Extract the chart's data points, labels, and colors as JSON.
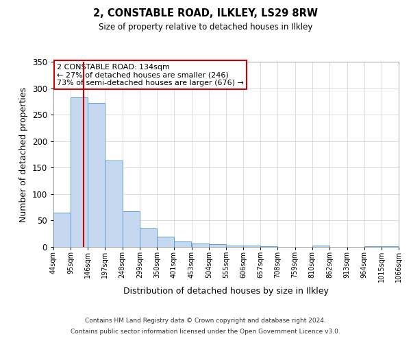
{
  "title": "2, CONSTABLE ROAD, ILKLEY, LS29 8RW",
  "subtitle": "Size of property relative to detached houses in Ilkley",
  "xlabel": "Distribution of detached houses by size in Ilkley",
  "ylabel": "Number of detached properties",
  "bar_left_edges": [
    44,
    95,
    146,
    197,
    248,
    299,
    350,
    401,
    453,
    504,
    555,
    606,
    657,
    708,
    759,
    810,
    862,
    913,
    964,
    1015
  ],
  "bar_heights": [
    65,
    282,
    272,
    163,
    67,
    35,
    20,
    10,
    7,
    5,
    2,
    2,
    1,
    0,
    0,
    2,
    0,
    0,
    1,
    1
  ],
  "bin_width": 51,
  "tick_labels": [
    "44sqm",
    "95sqm",
    "146sqm",
    "197sqm",
    "248sqm",
    "299sqm",
    "350sqm",
    "401sqm",
    "453sqm",
    "504sqm",
    "555sqm",
    "606sqm",
    "657sqm",
    "708sqm",
    "759sqm",
    "810sqm",
    "862sqm",
    "913sqm",
    "964sqm",
    "1015sqm",
    "1066sqm"
  ],
  "bar_color": "#c5d8f0",
  "bar_edge_color": "#5b9bd5",
  "vline_x": 134,
  "vline_color": "#cc0000",
  "ylim": [
    0,
    350
  ],
  "yticks": [
    0,
    50,
    100,
    150,
    200,
    250,
    300,
    350
  ],
  "annotation_text": "2 CONSTABLE ROAD: 134sqm\n← 27% of detached houses are smaller (246)\n73% of semi-detached houses are larger (676) →",
  "annotation_box_color": "#ffffff",
  "annotation_border_color": "#cc0000",
  "footer1": "Contains HM Land Registry data © Crown copyright and database right 2024.",
  "footer2": "Contains public sector information licensed under the Open Government Licence v3.0.",
  "background_color": "#ffffff",
  "grid_color": "#d0d0d0"
}
